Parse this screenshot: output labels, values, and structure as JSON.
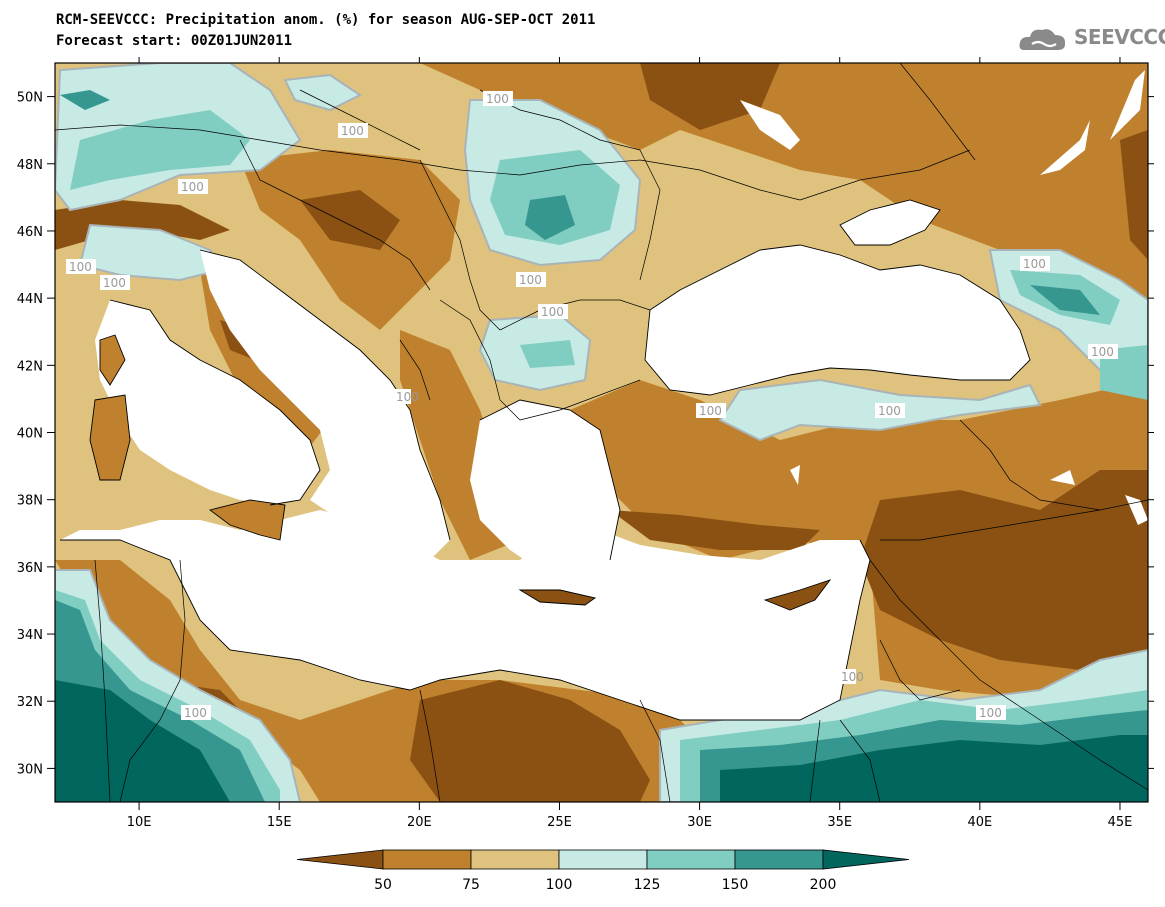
{
  "header": {
    "title_line1": "RCM-SEEVCCC: Precipitation anom. (%) for season AUG-SEP-OCT 2011",
    "title_line2": "Forecast start: 00Z01JUN2011",
    "logo_text": "SEEVCCC",
    "logo_icon": "cloud-icon"
  },
  "map": {
    "projection": "lat-lon",
    "lon_range": [
      7,
      46
    ],
    "lat_range": [
      29,
      51
    ],
    "lon_ticks": [
      "10E",
      "15E",
      "20E",
      "25E",
      "30E",
      "35E",
      "40E",
      "45E"
    ],
    "lat_ticks": [
      "30N",
      "32N",
      "34N",
      "36N",
      "38N",
      "40N",
      "42N",
      "44N",
      "46N",
      "48N",
      "50N"
    ],
    "contour_labels": [
      "100",
      "100",
      "100",
      "100",
      "100",
      "100",
      "100",
      "100",
      "100",
      "100",
      "100",
      "100",
      "100",
      "100",
      "100"
    ]
  },
  "colorbar": {
    "levels": [
      "50",
      "75",
      "100",
      "125",
      "150",
      "200"
    ],
    "colors": [
      "#8b5113",
      "#bf812d",
      "#dfc27d",
      "#c7eae5",
      "#80cdc1",
      "#35978f",
      "#01665e"
    ]
  }
}
